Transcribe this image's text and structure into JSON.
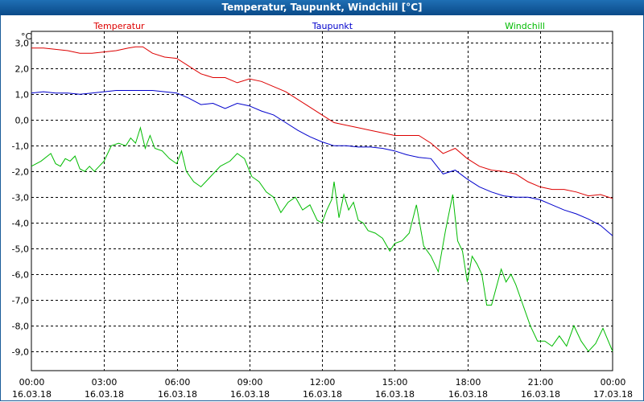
{
  "window": {
    "title": "Temperatur, Taupunkt, Windchill [°C]"
  },
  "chart_data": {
    "type": "line",
    "title": "Temperatur, Taupunkt, Windchill [°C]",
    "ylabel": "°C",
    "ylim": [
      -9.75,
      3.45
    ],
    "xlim": [
      0,
      24
    ],
    "grid": true,
    "yticks": [
      "3,0",
      "2,0",
      "1,0",
      "0,0",
      "-1,0",
      "-2,0",
      "-3,0",
      "-4,0",
      "-5,0",
      "-6,0",
      "-7,0",
      "-8,0",
      "-9,0"
    ],
    "ytick_values": [
      3,
      2,
      1,
      0,
      -1,
      -2,
      -3,
      -4,
      -5,
      -6,
      -7,
      -8,
      -9
    ],
    "xticks": [
      {
        "time": "00:00",
        "date": "16.03.18"
      },
      {
        "time": "03:00",
        "date": "16.03.18"
      },
      {
        "time": "06:00",
        "date": "16.03.18"
      },
      {
        "time": "09:00",
        "date": "16.03.18"
      },
      {
        "time": "12:00",
        "date": "16.03.18"
      },
      {
        "time": "15:00",
        "date": "16.03.18"
      },
      {
        "time": "18:00",
        "date": "16.03.18"
      },
      {
        "time": "21:00",
        "date": "16.03.18"
      },
      {
        "time": "00:00",
        "date": "17.03.18"
      }
    ],
    "series": [
      {
        "name": "Temperatur",
        "color": "#dd0000",
        "x": [
          0,
          0.5,
          1,
          1.5,
          2,
          2.5,
          3,
          3.5,
          4,
          4.3,
          4.6,
          5,
          5.5,
          6,
          6.5,
          7,
          7.5,
          8,
          8.5,
          9,
          9.5,
          10,
          10.5,
          11,
          11.5,
          12,
          12.5,
          13,
          13.5,
          14,
          14.5,
          15,
          15.5,
          16,
          16.5,
          17,
          17.5,
          18,
          18.5,
          19,
          19.5,
          20,
          20.5,
          21,
          21.5,
          22,
          22.5,
          23,
          23.5,
          24
        ],
        "values": [
          2.8,
          2.8,
          2.75,
          2.7,
          2.6,
          2.6,
          2.65,
          2.7,
          2.8,
          2.85,
          2.85,
          2.6,
          2.45,
          2.4,
          2.1,
          1.8,
          1.65,
          1.65,
          1.45,
          1.6,
          1.5,
          1.3,
          1.1,
          0.8,
          0.5,
          0.2,
          -0.1,
          -0.2,
          -0.3,
          -0.4,
          -0.5,
          -0.6,
          -0.6,
          -0.6,
          -0.9,
          -1.3,
          -1.1,
          -1.5,
          -1.8,
          -1.95,
          -2.0,
          -2.1,
          -2.4,
          -2.6,
          -2.7,
          -2.7,
          -2.8,
          -2.95,
          -2.9,
          -3.05
        ]
      },
      {
        "name": "Taupunkt",
        "color": "#0000cc",
        "x": [
          0,
          0.5,
          1,
          1.5,
          2,
          2.5,
          3,
          3.5,
          4,
          4.5,
          5,
          5.5,
          6,
          6.5,
          7,
          7.5,
          8,
          8.5,
          9,
          9.5,
          10,
          10.5,
          11,
          11.5,
          12,
          12.5,
          13,
          13.5,
          14,
          14.5,
          15,
          15.5,
          16,
          16.5,
          17,
          17.5,
          18,
          18.5,
          19,
          19.5,
          20,
          20.5,
          21,
          21.5,
          22,
          22.5,
          23,
          23.5,
          24
        ],
        "values": [
          1.05,
          1.1,
          1.05,
          1.05,
          1.0,
          1.05,
          1.1,
          1.15,
          1.15,
          1.15,
          1.15,
          1.1,
          1.05,
          0.85,
          0.6,
          0.65,
          0.45,
          0.65,
          0.55,
          0.35,
          0.2,
          -0.1,
          -0.4,
          -0.65,
          -0.85,
          -1.0,
          -1.0,
          -1.05,
          -1.05,
          -1.1,
          -1.2,
          -1.35,
          -1.45,
          -1.5,
          -2.1,
          -1.95,
          -2.3,
          -2.6,
          -2.8,
          -2.95,
          -3.0,
          -3.0,
          -3.1,
          -3.3,
          -3.5,
          -3.65,
          -3.85,
          -4.1,
          -4.5
        ]
      },
      {
        "name": "Windchill",
        "color": "#00bb00",
        "x": [
          0,
          0.4,
          0.8,
          1.0,
          1.2,
          1.4,
          1.6,
          1.8,
          2.0,
          2.2,
          2.4,
          2.6,
          2.8,
          3.0,
          3.3,
          3.6,
          3.9,
          4.1,
          4.3,
          4.5,
          4.7,
          4.9,
          5.1,
          5.4,
          5.7,
          6.0,
          6.2,
          6.4,
          6.7,
          7.0,
          7.4,
          7.8,
          8.2,
          8.5,
          8.8,
          9.1,
          9.4,
          9.7,
          10.0,
          10.3,
          10.6,
          10.9,
          11.2,
          11.5,
          11.8,
          12.0,
          12.2,
          12.4,
          12.5,
          12.7,
          12.9,
          13.1,
          13.3,
          13.5,
          13.7,
          13.9,
          14.2,
          14.5,
          14.8,
          15.0,
          15.3,
          15.6,
          15.9,
          16.2,
          16.5,
          16.8,
          17.1,
          17.4,
          17.6,
          17.8,
          18.0,
          18.2,
          18.4,
          18.6,
          18.8,
          19.0,
          19.2,
          19.4,
          19.6,
          19.8,
          20.0,
          20.3,
          20.6,
          20.9,
          21.2,
          21.5,
          21.8,
          22.1,
          22.4,
          22.7,
          23.0,
          23.3,
          23.6,
          24.0
        ],
        "values": [
          -1.8,
          -1.6,
          -1.3,
          -1.7,
          -1.8,
          -1.5,
          -1.6,
          -1.4,
          -1.9,
          -2.0,
          -1.8,
          -2.0,
          -1.8,
          -1.6,
          -1.0,
          -0.9,
          -1.0,
          -0.7,
          -0.9,
          -0.3,
          -1.1,
          -0.6,
          -1.1,
          -1.2,
          -1.5,
          -1.7,
          -1.2,
          -2.0,
          -2.4,
          -2.6,
          -2.2,
          -1.8,
          -1.6,
          -1.3,
          -1.5,
          -2.2,
          -2.4,
          -2.8,
          -3.0,
          -3.6,
          -3.2,
          -3.0,
          -3.5,
          -3.3,
          -3.9,
          -4.0,
          -3.5,
          -3.1,
          -2.4,
          -3.8,
          -2.9,
          -3.5,
          -3.2,
          -3.9,
          -4.0,
          -4.3,
          -4.4,
          -4.6,
          -5.1,
          -4.8,
          -4.7,
          -4.4,
          -3.3,
          -4.9,
          -5.3,
          -5.9,
          -4.3,
          -2.9,
          -4.7,
          -5.1,
          -6.3,
          -5.3,
          -5.6,
          -6.0,
          -7.2,
          -7.2,
          -6.5,
          -5.8,
          -6.3,
          -6.0,
          -6.4,
          -7.2,
          -8.0,
          -8.6,
          -8.6,
          -8.8,
          -8.4,
          -8.8,
          -8.0,
          -8.6,
          -9.0,
          -8.7,
          -8.1,
          -9.0
        ]
      }
    ]
  }
}
